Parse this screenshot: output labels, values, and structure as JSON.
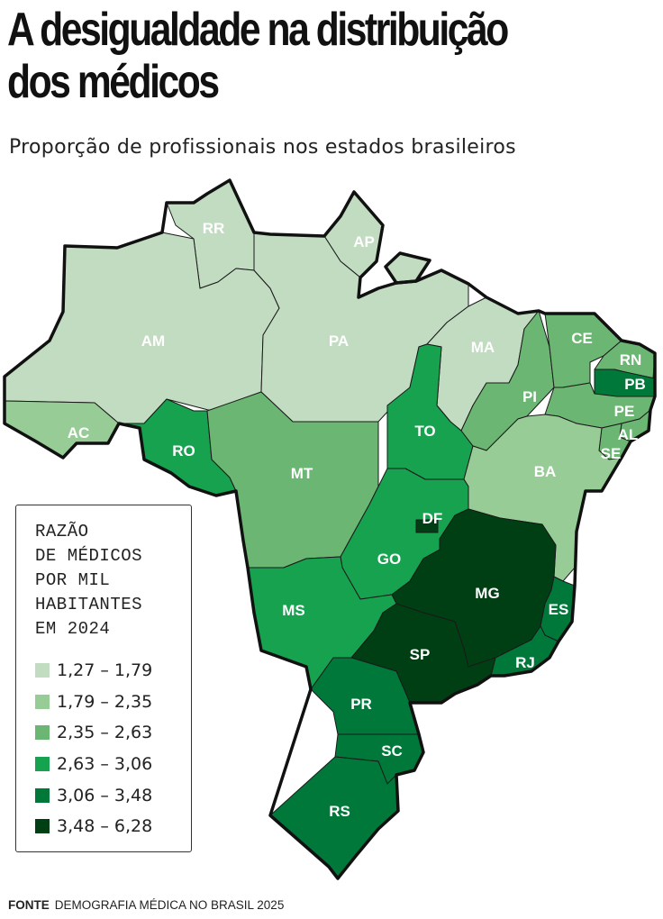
{
  "header": {
    "title_line1": "A desigualdade na distribuição",
    "title_line2": "dos médicos",
    "subtitle": "Proporção de profissionais nos estados brasileiros"
  },
  "legend": {
    "title_lines": [
      "RAZÃO",
      "DE MÉDICOS",
      "POR MIL",
      "HABITANTES",
      "EM 2024"
    ],
    "bins": [
      {
        "label": "1,27 – 1,79",
        "color": "#c1dcc0"
      },
      {
        "label": "1,79 – 2,35",
        "color": "#98cc97"
      },
      {
        "label": "2,35 – 2,63",
        "color": "#6bb673"
      },
      {
        "label": "2,63 – 3,06",
        "color": "#16a24f"
      },
      {
        "label": "3,06 – 3,48",
        "color": "#00783a"
      },
      {
        "label": "3,48 – 6,28",
        "color": "#003f13"
      }
    ]
  },
  "states": [
    {
      "abbr": "RR",
      "bin": 0
    },
    {
      "abbr": "AP",
      "bin": 0
    },
    {
      "abbr": "AM",
      "bin": 0
    },
    {
      "abbr": "PA",
      "bin": 0
    },
    {
      "abbr": "MA",
      "bin": 0
    },
    {
      "abbr": "AC",
      "bin": 1
    },
    {
      "abbr": "BA",
      "bin": 1
    },
    {
      "abbr": "MT",
      "bin": 2
    },
    {
      "abbr": "PI",
      "bin": 2
    },
    {
      "abbr": "CE",
      "bin": 2
    },
    {
      "abbr": "RN",
      "bin": 2
    },
    {
      "abbr": "PE",
      "bin": 2
    },
    {
      "abbr": "AL",
      "bin": 2
    },
    {
      "abbr": "SE",
      "bin": 2
    },
    {
      "abbr": "RO",
      "bin": 3
    },
    {
      "abbr": "TO",
      "bin": 3
    },
    {
      "abbr": "GO",
      "bin": 3
    },
    {
      "abbr": "MS",
      "bin": 3
    },
    {
      "abbr": "PB",
      "bin": 4
    },
    {
      "abbr": "PR",
      "bin": 4
    },
    {
      "abbr": "SC",
      "bin": 4
    },
    {
      "abbr": "RS",
      "bin": 4
    },
    {
      "abbr": "ES",
      "bin": 4
    },
    {
      "abbr": "RJ",
      "bin": 4
    },
    {
      "abbr": "SP",
      "bin": 5
    },
    {
      "abbr": "MG",
      "bin": 5
    },
    {
      "abbr": "DF",
      "bin": 5
    }
  ],
  "source": {
    "label": "FONTE",
    "text": "DEMOGRAFIA MÉDICA NO BRASIL 2025"
  }
}
